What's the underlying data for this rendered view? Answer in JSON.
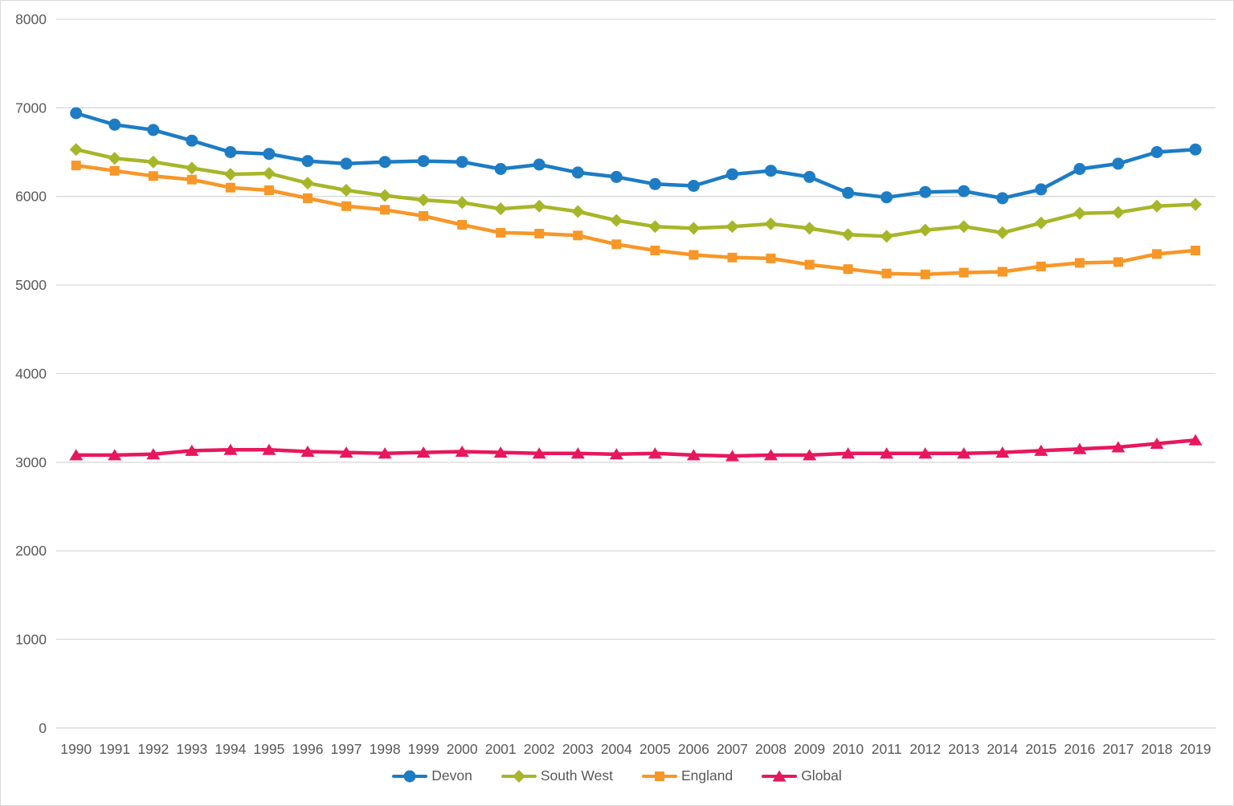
{
  "chart_data": {
    "type": "line",
    "title": "",
    "xlabel": "",
    "ylabel": "",
    "x": [
      "1990",
      "1991",
      "1992",
      "1993",
      "1994",
      "1995",
      "1996",
      "1997",
      "1998",
      "1999",
      "2000",
      "2001",
      "2002",
      "2003",
      "2004",
      "2005",
      "2006",
      "2007",
      "2008",
      "2009",
      "2010",
      "2011",
      "2012",
      "2013",
      "2014",
      "2015",
      "2016",
      "2017",
      "2018",
      "2019"
    ],
    "y_ticks": [
      0,
      1000,
      2000,
      3000,
      4000,
      5000,
      6000,
      7000,
      8000
    ],
    "ylim": [
      0,
      8000
    ],
    "grid": "horizontal",
    "grid_color": "#d9d9d9",
    "axis_text_color": "#595959",
    "background_color": "#ffffff",
    "frame_border_color": "#d9d9d9",
    "legend_position": "bottom-center",
    "series": [
      {
        "name": "Devon",
        "color": "#1d7cc4",
        "marker": "circle",
        "values": [
          6940,
          6810,
          6750,
          6630,
          6500,
          6480,
          6400,
          6370,
          6390,
          6400,
          6390,
          6310,
          6360,
          6270,
          6220,
          6140,
          6120,
          6250,
          6290,
          6220,
          6040,
          5990,
          6050,
          6060,
          5980,
          6080,
          6310,
          6370,
          6500,
          6530
        ]
      },
      {
        "name": "South West",
        "color": "#a6b629",
        "marker": "diamond",
        "values": [
          6530,
          6430,
          6390,
          6320,
          6250,
          6260,
          6150,
          6070,
          6010,
          5960,
          5930,
          5860,
          5890,
          5830,
          5730,
          5660,
          5640,
          5660,
          5690,
          5640,
          5570,
          5550,
          5620,
          5660,
          5590,
          5700,
          5810,
          5820,
          5890,
          5910
        ]
      },
      {
        "name": "England",
        "color": "#f79728",
        "marker": "square",
        "values": [
          6350,
          6290,
          6230,
          6190,
          6100,
          6070,
          5980,
          5890,
          5850,
          5780,
          5680,
          5590,
          5580,
          5560,
          5460,
          5390,
          5340,
          5310,
          5300,
          5230,
          5180,
          5130,
          5120,
          5140,
          5150,
          5210,
          5250,
          5260,
          5350,
          5390
        ]
      },
      {
        "name": "Global",
        "color": "#e8175d",
        "marker": "triangle",
        "values": [
          3080,
          3080,
          3090,
          3130,
          3140,
          3140,
          3120,
          3110,
          3100,
          3110,
          3120,
          3110,
          3100,
          3100,
          3090,
          3100,
          3080,
          3070,
          3080,
          3080,
          3100,
          3100,
          3100,
          3100,
          3110,
          3130,
          3150,
          3170,
          3210,
          3250
        ]
      }
    ]
  }
}
